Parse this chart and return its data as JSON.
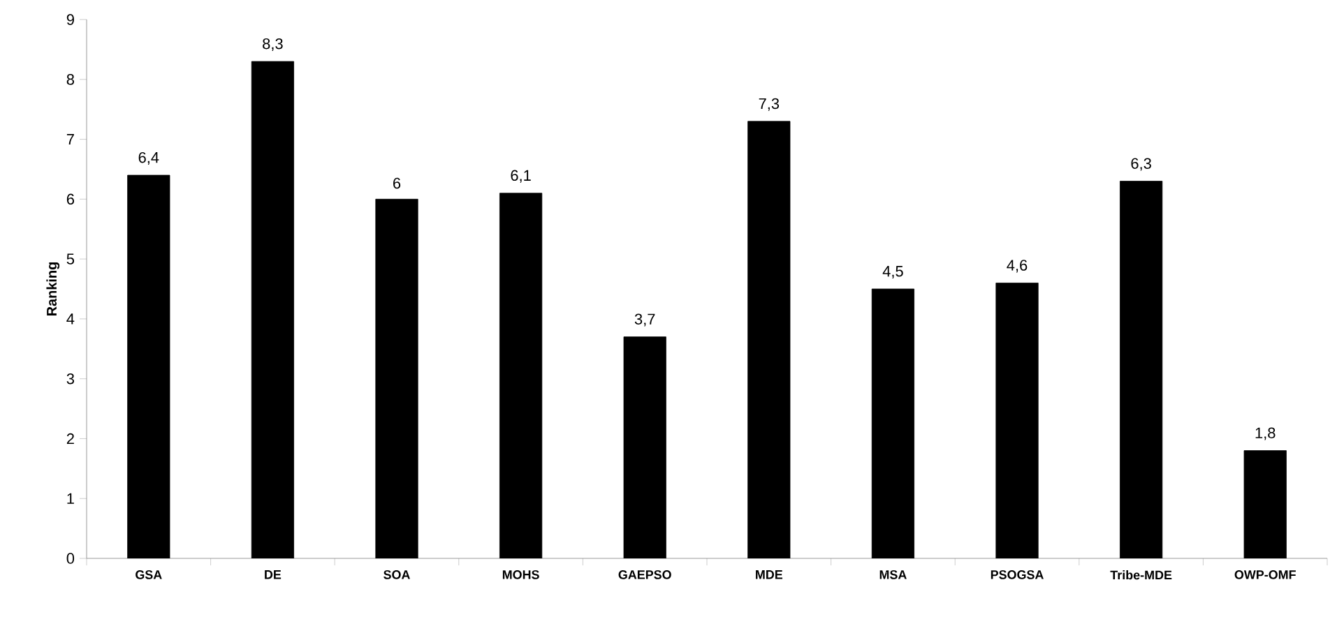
{
  "chart_data": {
    "type": "bar",
    "ylabel": "Ranking",
    "categories": [
      "GSA",
      "DE",
      "SOA",
      "MOHS",
      "GAEPSO",
      "MDE",
      "MSA",
      "PSOGSA",
      "Tribe-MDE",
      "OWP-OMF"
    ],
    "values": [
      6.4,
      8.3,
      6,
      6.1,
      3.7,
      7.3,
      4.5,
      4.6,
      6.3,
      1.8
    ],
    "value_labels": [
      "6,4",
      "8,3",
      "6",
      "6,1",
      "3,7",
      "7,3",
      "4,5",
      "4,6",
      "6,3",
      "1,8"
    ],
    "color": "#000000",
    "ylim": [
      0,
      9
    ],
    "yticks": [
      0,
      1,
      2,
      3,
      4,
      5,
      6,
      7,
      8,
      9
    ]
  }
}
